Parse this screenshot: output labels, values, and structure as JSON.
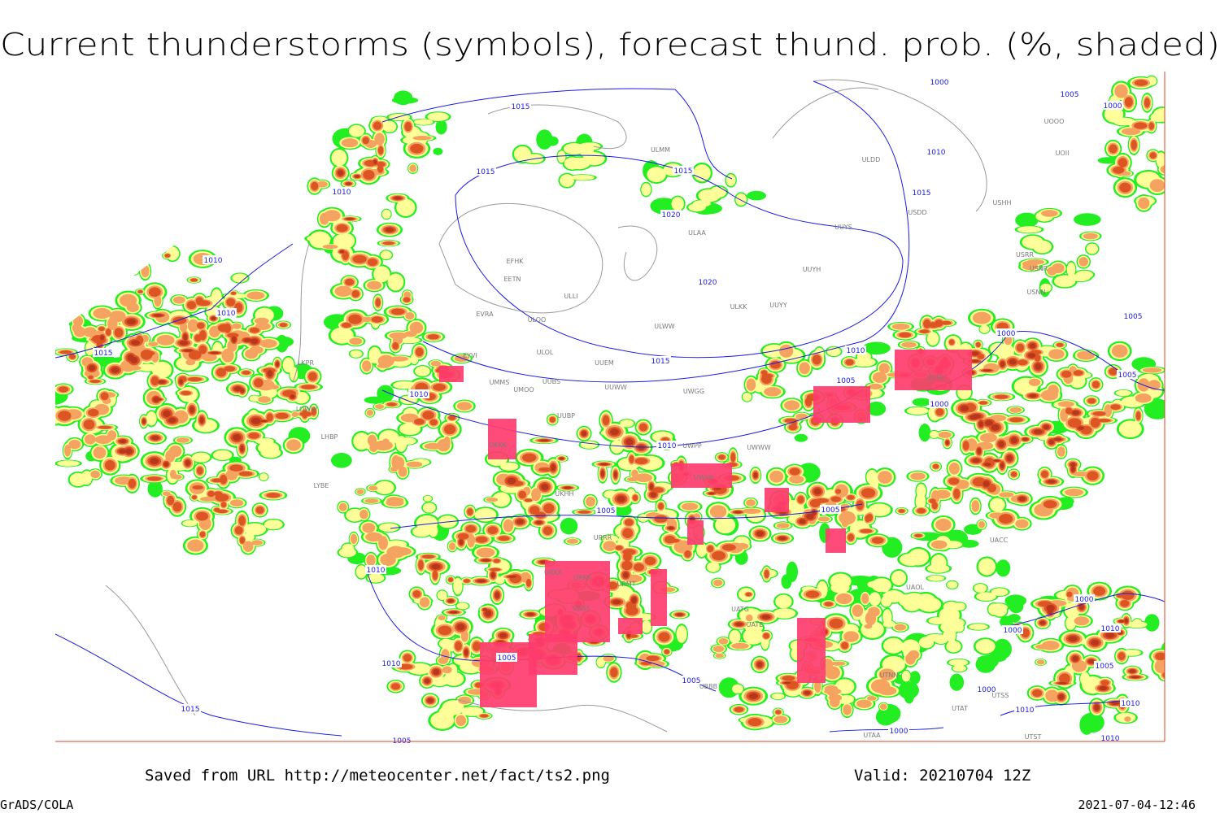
{
  "title": "Current thunderstorms (symbols), forecast thund. prob. (%, shaded)",
  "footer": {
    "source": "Saved from URL http://meteocenter.net/fact/ts2.png",
    "valid": "Valid: 20210704 12Z",
    "credit": "GrADS/COLA",
    "timestamp": "2021-07-04-12:46"
  },
  "isobars": [
    "1015",
    "1015",
    "1015",
    "1020",
    "1020",
    "1015",
    "1010",
    "1010",
    "1010",
    "1015",
    "1010",
    "1010",
    "1005",
    "1005",
    "1005",
    "1000",
    "1000",
    "1010",
    "1000",
    "1005",
    "1000",
    "1010",
    "1015",
    "1005",
    "1005",
    "1000",
    "1000",
    "1010",
    "1005",
    "1010",
    "1010",
    "1010",
    "1000",
    "1000",
    "1005",
    "1005",
    "1010",
    "1010",
    "1015",
    "1005"
  ],
  "stations": [
    "ULMM",
    "ULDD",
    "USHH",
    "USDD",
    "ULAA",
    "UUYS",
    "EFHK",
    "EETN",
    "UUYH",
    "ULLI",
    "ULKK",
    "UUYY",
    "EVRA",
    "ULOO",
    "ULWW",
    "ULOL",
    "UUEM",
    "EYVI",
    "UMMS",
    "UMOO",
    "UUBS",
    "UUWW",
    "UWGG",
    "UUBP",
    "UWPP",
    "UWWW",
    "UKKK",
    "USTR",
    "USRR",
    "USNR",
    "UOOO",
    "UOII",
    "USNN",
    "LKPR",
    "LOWW",
    "LHBP",
    "UKHH",
    "UWSS",
    "URRR",
    "URKA",
    "URKK",
    "URMT",
    "URSS",
    "UATG",
    "UATE",
    "UTNN",
    "UAOL",
    "UACC",
    "UTSS",
    "UTAT",
    "UTAA",
    "UTST",
    "UBBB",
    "LYBE"
  ]
}
